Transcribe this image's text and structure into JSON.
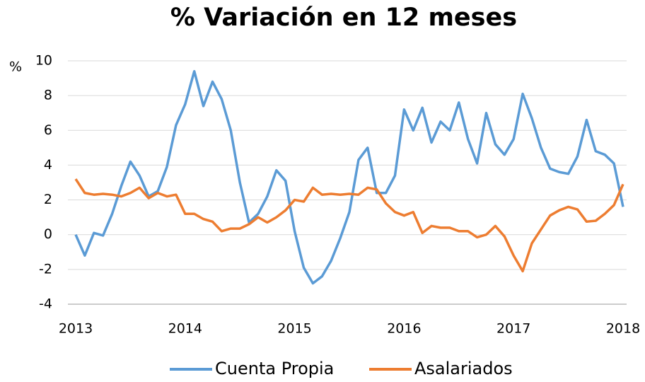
{
  "chart_data": {
    "type": "line",
    "title": "% Variación en 12 meses",
    "y_label": "%",
    "categories": [
      "2013",
      null,
      null,
      null,
      null,
      null,
      null,
      null,
      null,
      null,
      null,
      null,
      "2014",
      null,
      null,
      null,
      null,
      null,
      null,
      null,
      null,
      null,
      null,
      null,
      "2015",
      null,
      null,
      null,
      null,
      null,
      null,
      null,
      null,
      null,
      null,
      null,
      "2016",
      null,
      null,
      null,
      null,
      null,
      null,
      null,
      null,
      null,
      null,
      null,
      "2017",
      null,
      null,
      null,
      null,
      null,
      null,
      null,
      null,
      null,
      null,
      null,
      "2018"
    ],
    "series": [
      {
        "name": "Cuenta Propia",
        "color": "#5b9bd5",
        "values": [
          0,
          -1.2,
          0.1,
          -0.05,
          1.2,
          2.8,
          4.2,
          3.4,
          2.2,
          2.5,
          3.9,
          6.3,
          7.5,
          9.4,
          7.4,
          8.8,
          7.8,
          6.0,
          3.0,
          0.7,
          1.2,
          2.2,
          3.7,
          3.1,
          0.2,
          -1.9,
          -2.8,
          -2.4,
          -1.5,
          -0.2,
          1.3,
          4.3,
          5.0,
          2.4,
          2.4,
          3.4,
          7.2,
          6.0,
          7.3,
          5.3,
          6.5,
          6.0,
          7.6,
          5.5,
          4.1,
          7.0,
          5.2,
          4.6,
          5.5,
          8.1,
          6.7,
          5.0,
          3.8,
          3.6,
          3.5,
          4.5,
          6.6,
          4.8,
          4.6,
          4.1,
          1.6
        ]
      },
      {
        "name": "Asalariados",
        "color": "#ed7d31",
        "values": [
          3.2,
          2.4,
          2.3,
          2.35,
          2.3,
          2.2,
          2.4,
          2.7,
          2.1,
          2.4,
          2.2,
          2.3,
          1.2,
          1.2,
          0.9,
          0.75,
          0.2,
          0.35,
          0.35,
          0.6,
          1.0,
          0.7,
          1.0,
          1.4,
          2.0,
          1.9,
          2.7,
          2.3,
          2.35,
          2.3,
          2.35,
          2.3,
          2.7,
          2.6,
          1.8,
          1.3,
          1.1,
          1.3,
          0.1,
          0.5,
          0.4,
          0.4,
          0.2,
          0.2,
          -0.15,
          0.0,
          0.5,
          -0.1,
          -1.2,
          -2.1,
          -0.5,
          0.3,
          1.1,
          1.4,
          1.6,
          1.45,
          0.75,
          0.8,
          1.2,
          1.7,
          2.9
        ]
      }
    ],
    "ylim": [
      -4,
      10
    ],
    "yticks": [
      -4,
      -2,
      0,
      2,
      4,
      6,
      8,
      10
    ],
    "grid": true,
    "legend": "bottom"
  }
}
